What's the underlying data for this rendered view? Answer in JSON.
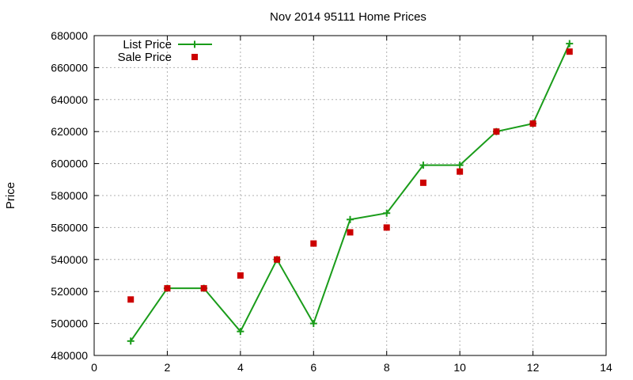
{
  "chart_data": {
    "type": "line",
    "title": "Nov 2014 95111 Home Prices",
    "xlabel": "",
    "ylabel": "Price",
    "xlim": [
      0,
      14
    ],
    "ylim": [
      480000,
      680000
    ],
    "xticks": [
      0,
      2,
      4,
      6,
      8,
      10,
      12,
      14
    ],
    "yticks": [
      480000,
      500000,
      520000,
      540000,
      560000,
      580000,
      600000,
      620000,
      640000,
      660000,
      680000
    ],
    "grid": true,
    "legend_position": "top-left",
    "series": [
      {
        "name": "List Price",
        "style": "line+plus",
        "color": "#1a9c1a",
        "x": [
          1,
          2,
          3,
          4,
          5,
          6,
          7,
          8,
          9,
          10,
          11,
          12,
          13
        ],
        "y": [
          489000,
          522000,
          522000,
          495000,
          540000,
          500000,
          565000,
          569000,
          599000,
          599000,
          620000,
          625000,
          675000
        ]
      },
      {
        "name": "Sale Price",
        "style": "square",
        "color": "#cc0000",
        "x": [
          1,
          2,
          3,
          4,
          5,
          6,
          7,
          8,
          9,
          10,
          11,
          12,
          13
        ],
        "y": [
          515000,
          522000,
          522000,
          530000,
          540000,
          550000,
          557000,
          560000,
          588000,
          595000,
          620000,
          625000,
          670000
        ]
      }
    ]
  }
}
